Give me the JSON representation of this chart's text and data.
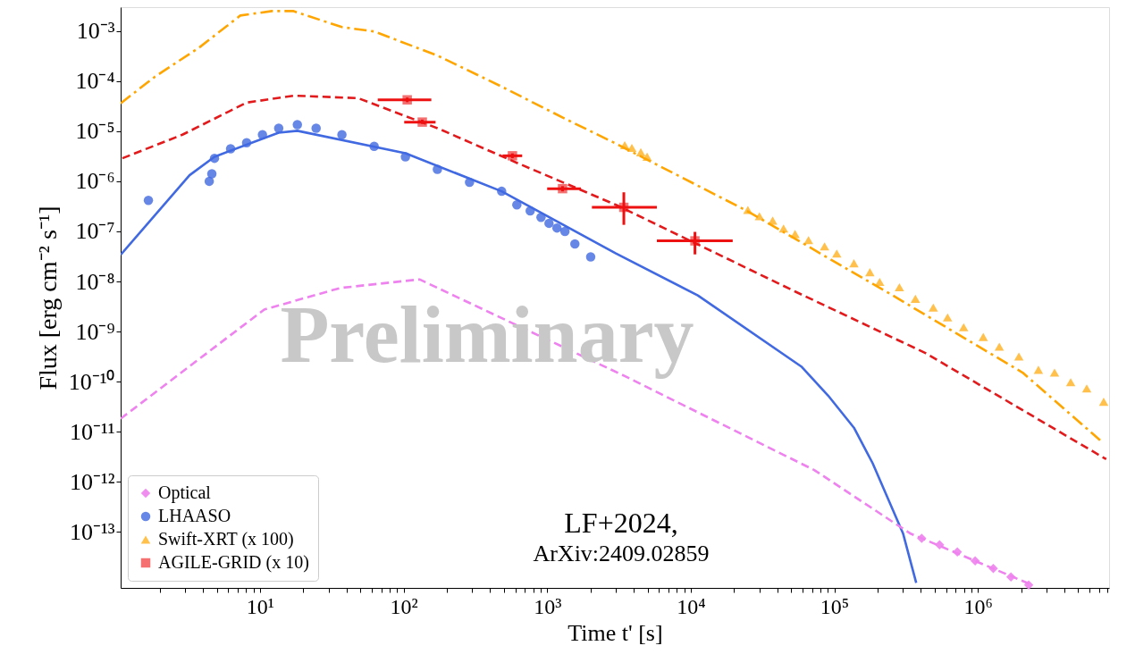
{
  "chart_data": {
    "type": "scatter",
    "xlabel": "Time t' [s]",
    "ylabel": "Flux [erg cm⁻² s⁻¹]",
    "log": "xy",
    "grid": false,
    "legend": "bottom left",
    "xlim": [
      1.07,
      8200000.0
    ],
    "ylim": [
      7.6e-15,
      0.003
    ],
    "xticks": [
      {
        "value": 2,
        "label": null
      },
      {
        "value": 3,
        "label": null
      },
      {
        "value": 4,
        "label": null
      },
      {
        "value": 5,
        "label": null
      },
      {
        "value": 6,
        "label": null
      },
      {
        "value": 7,
        "label": null
      },
      {
        "value": 8,
        "label": null
      },
      {
        "value": 9,
        "label": null
      },
      {
        "value": 10,
        "label": "10¹"
      },
      {
        "value": 20,
        "label": null
      },
      {
        "value": 30,
        "label": null
      },
      {
        "value": 40,
        "label": null
      },
      {
        "value": 50,
        "label": null
      },
      {
        "value": 60,
        "label": null
      },
      {
        "value": 70,
        "label": null
      },
      {
        "value": 80,
        "label": null
      },
      {
        "value": 90,
        "label": null
      },
      {
        "value": 100,
        "label": "10²"
      },
      {
        "value": 200,
        "label": null
      },
      {
        "value": 300,
        "label": null
      },
      {
        "value": 400,
        "label": null
      },
      {
        "value": 500,
        "label": null
      },
      {
        "value": 600,
        "label": null
      },
      {
        "value": 700,
        "label": null
      },
      {
        "value": 800,
        "label": null
      },
      {
        "value": 900,
        "label": null
      },
      {
        "value": 1000,
        "label": "10³"
      },
      {
        "value": 2000,
        "label": null
      },
      {
        "value": 3000,
        "label": null
      },
      {
        "value": 4000,
        "label": null
      },
      {
        "value": 5000,
        "label": null
      },
      {
        "value": 6000,
        "label": null
      },
      {
        "value": 7000,
        "label": null
      },
      {
        "value": 8000,
        "label": null
      },
      {
        "value": 9000,
        "label": null
      },
      {
        "value": 10000,
        "label": "10⁴"
      },
      {
        "value": 20000,
        "label": null
      },
      {
        "value": 30000,
        "label": null
      },
      {
        "value": 40000,
        "label": null
      },
      {
        "value": 50000,
        "label": null
      },
      {
        "value": 60000,
        "label": null
      },
      {
        "value": 70000,
        "label": null
      },
      {
        "value": 80000,
        "label": null
      },
      {
        "value": 90000,
        "label": null
      },
      {
        "value": 100000,
        "label": "10⁵"
      },
      {
        "value": 200000,
        "label": null
      },
      {
        "value": 300000,
        "label": null
      },
      {
        "value": 400000,
        "label": null
      },
      {
        "value": 500000,
        "label": null
      },
      {
        "value": 600000,
        "label": null
      },
      {
        "value": 700000,
        "label": null
      },
      {
        "value": 800000,
        "label": null
      },
      {
        "value": 900000,
        "label": null
      },
      {
        "value": 1000000,
        "label": "10⁶"
      },
      {
        "value": 2000000,
        "label": null
      },
      {
        "value": 3000000,
        "label": null
      },
      {
        "value": 4000000,
        "label": null
      },
      {
        "value": 5000000,
        "label": null
      },
      {
        "value": 6000000,
        "label": null
      },
      {
        "value": 7000000,
        "label": null
      },
      {
        "value": 8000000,
        "label": null
      }
    ],
    "yticks": [
      {
        "value": 0.001,
        "label": "10⁻³"
      },
      {
        "value": 0.0001,
        "label": "10⁻⁴"
      },
      {
        "value": 1e-05,
        "label": "10⁻⁵"
      },
      {
        "value": 1e-06,
        "label": "10⁻⁶"
      },
      {
        "value": 1e-07,
        "label": "10⁻⁷"
      },
      {
        "value": 1e-08,
        "label": "10⁻⁸"
      },
      {
        "value": 1e-09,
        "label": "10⁻⁹"
      },
      {
        "value": 1e-10,
        "label": "10⁻¹⁰"
      },
      {
        "value": 1e-11,
        "label": "10⁻¹¹"
      },
      {
        "value": 1e-12,
        "label": "10⁻¹²"
      },
      {
        "value": 1e-13,
        "label": "10⁻¹³"
      }
    ],
    "annotations": [
      "Preliminary",
      "LF+2024,",
      "ArXiv:2409.02859"
    ],
    "series": [
      {
        "type": "line",
        "color": "#ffa500",
        "line_style": "dashdot",
        "x": [
          1.07,
          1.85,
          3.78,
          7.29,
          12.1,
          17.0,
          37.2,
          62.4,
          172,
          482,
          1330,
          2880,
          24600,
          229000,
          2050000,
          7100000
        ],
        "values": [
          3.6e-05,
          0.000122,
          0.00047,
          0.00204,
          0.00251,
          0.00251,
          0.0012,
          0.00098,
          0.000324,
          7.76e-05,
          1.78e-05,
          6.03e-06,
          2.57e-07,
          6.31e-09,
          1.51e-10,
          6.76e-12
        ]
      },
      {
        "type": "line",
        "color": "#e31a1c",
        "line_style": "dashed",
        "x": [
          1.1,
          2.88,
          8.07,
          17.2,
          48.2,
          172,
          615,
          3010,
          53300,
          431000,
          7830000
        ],
        "values": [
          2.88e-06,
          8.51e-06,
          3.72e-05,
          5.13e-05,
          4.57e-05,
          1.15e-05,
          2.34e-06,
          3.39e-07,
          6.31e-09,
          3.72e-10,
          2.82e-12
        ]
      },
      {
        "type": "line",
        "color": "#4169e1",
        "line_style": "solid",
        "x": [
          1.07,
          3.23,
          4.82,
          13.5,
          18.2,
          103,
          482,
          3010,
          11200,
          58900,
          90600,
          137000,
          185000,
          301000,
          372000
        ],
        "values": [
          3.4e-08,
          1.32e-06,
          3.09e-06,
          9.33e-06,
          1.02e-05,
          3.63e-06,
          6.31e-07,
          3.63e-08,
          5.25e-09,
          2e-10,
          5.25e-11,
          1.2e-11,
          2.34e-12,
          9.33e-14,
          9.55e-15
        ]
      },
      {
        "type": "line",
        "color": "#ee82ee",
        "line_style": "dashed",
        "x": [
          1.07,
          10.7,
          36.2,
          129,
          3470,
          72900,
          337000,
          2290000
        ],
        "values": [
          1.82e-11,
          2.75e-09,
          7.41e-09,
          1.1e-08,
          1.29e-10,
          1.7e-12,
          9.33e-14,
          9.12e-15
        ]
      },
      {
        "name": "Optical",
        "color": "#ee82ee",
        "marker": "diamond",
        "x": [
          406000,
          541000,
          719000,
          957000,
          1280000,
          1700000,
          2260000
        ],
        "values": [
          7.41e-14,
          5.5e-14,
          3.98e-14,
          2.63e-14,
          1.86e-14,
          1.26e-14,
          8.71e-15
        ]
      },
      {
        "name": "LHAASO",
        "color": "#4169e1",
        "marker": "circle",
        "x": [
          1.67,
          4.43,
          4.62,
          4.82,
          6.24,
          8.07,
          10.4,
          13.5,
          18.2,
          24.6,
          37.2,
          62.4,
          103,
          172,
          288,
          482,
          615,
          762,
          906,
          1030,
          1170,
          1330,
          1560,
          2010
        ],
        "values": [
          4.17e-07,
          1e-06,
          1.41e-06,
          2.88e-06,
          4.47e-06,
          5.89e-06,
          8.51e-06,
          1.15e-05,
          1.35e-05,
          1.15e-05,
          8.51e-06,
          5.01e-06,
          3.09e-06,
          1.74e-06,
          9.55e-07,
          6.31e-07,
          3.39e-07,
          2.57e-07,
          1.91e-07,
          1.45e-07,
          1.17e-07,
          1e-07,
          5.62e-08,
          3.09e-08
        ]
      },
      {
        "name": "Swift-XRT (x 100)",
        "color": "#ffa500",
        "marker": "triangle",
        "x": [
          3470,
          3890,
          4490,
          4970,
          25000,
          30100,
          37200,
          44300,
          53300,
          66100,
          85500,
          104000,
          137000,
          177000,
          207000,
          284000,
          367000,
          489000,
          615000,
          796000,
          1090000,
          1410000,
          1930000,
          2640000,
          3420000,
          4430000,
          5730000,
          7520000
        ],
        "values": [
          5.27e-06,
          4.66e-06,
          3.8e-06,
          3.1e-06,
          2.67e-07,
          2.01e-07,
          1.64e-07,
          1.14e-07,
          8.87e-08,
          6.67e-08,
          5.01e-08,
          3.62e-08,
          2.31e-08,
          1.53e-08,
          9.79e-09,
          7.67e-09,
          4.51e-09,
          3e-09,
          1.91e-09,
          1.22e-09,
          7.8e-10,
          4.98e-10,
          3.18e-10,
          1.72e-10,
          1.52e-10,
          9.73e-11,
          7.31e-11,
          3.96e-11
        ]
      },
      {
        "name": "AGILE-GRID (x 10)",
        "color": "#ee1111",
        "marker": "square",
        "x": [
          106,
          135,
          573,
          1280,
          3420,
          10700
        ],
        "values": [
          4.23e-05,
          1.52e-05,
          3.23e-06,
          7.13e-07,
          3.02e-07,
          6.46e-08
        ],
        "errors": [
          [
            3.8e-05,
            4.7e-05
          ],
          [
            1.4e-05,
            1.7e-05
          ],
          [
            2.9e-06,
            3.6e-06
          ],
          [
            6.3e-07,
            8e-07
          ],
          [
            1.35e-07,
            6.03e-07
          ],
          [
            3.47e-08,
            9.77e-08
          ]
        ],
        "xerrors": [
          [
            66.1,
            156
          ],
          [
            101,
            167
          ],
          [
            489,
            670
          ],
          [
            1000,
            1720
          ],
          [
            2050,
            5810
          ],
          [
            5810,
            19600
          ]
        ]
      }
    ]
  }
}
